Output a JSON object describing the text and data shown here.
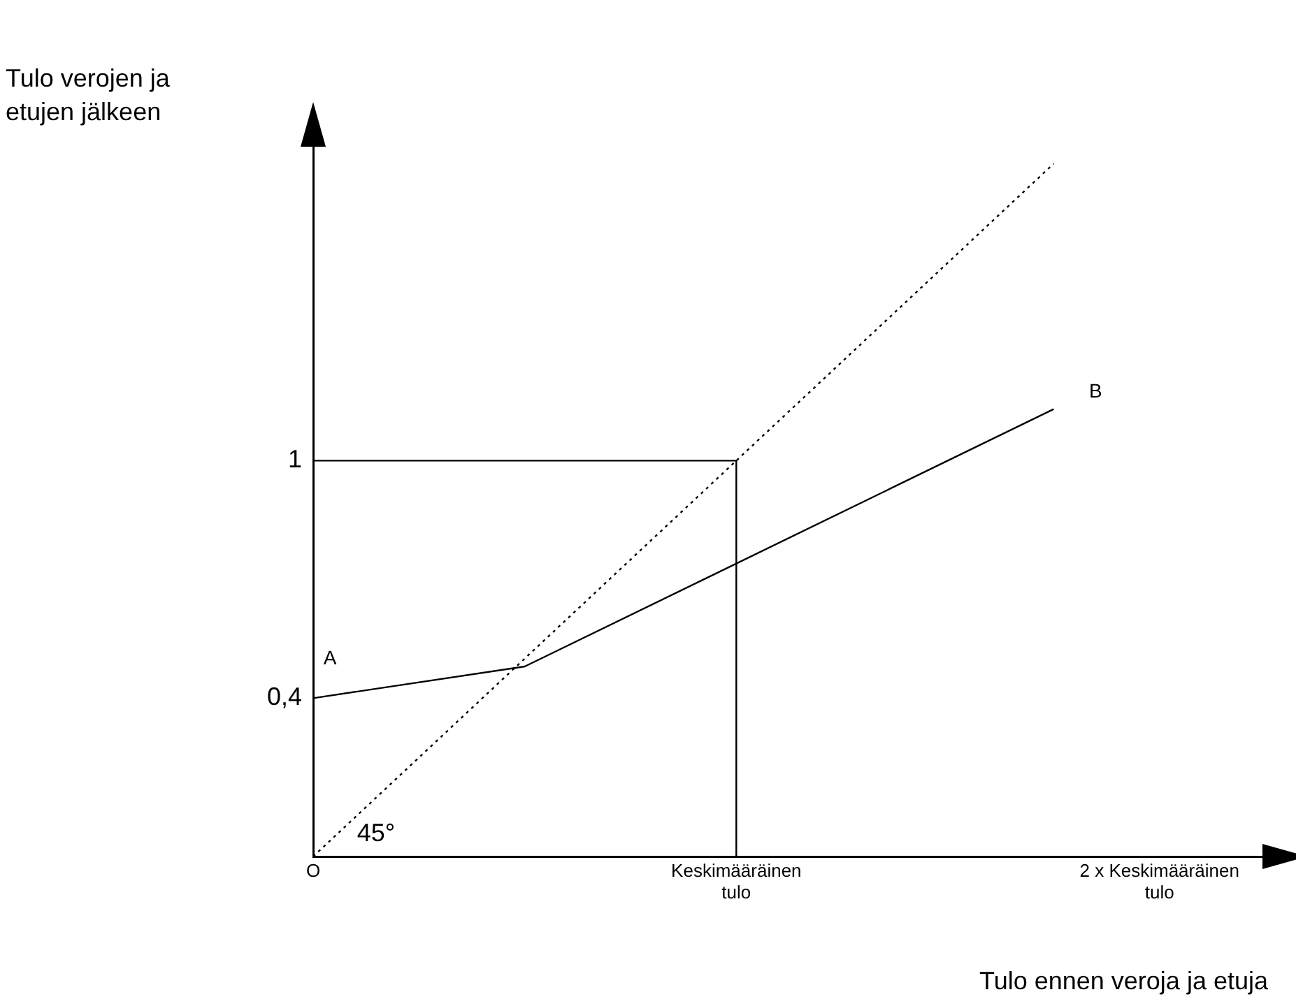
{
  "chart_data": {
    "type": "line",
    "xlabel": "Tulo ennen veroja ja etuja",
    "ylabel": "Tulo verojen ja etujen jälkeen",
    "categories": [
      "O",
      null,
      null,
      null,
      "Keskimääräinen tulo",
      null,
      null,
      null,
      "2 x Keskimääräinen tulo",
      null
    ],
    "ylim": [
      0,
      1.8
    ],
    "yticks": [
      {
        "value": 0.4,
        "label": "0,4"
      },
      1
    ],
    "grid": false,
    "legend": false,
    "marker": "none",
    "series": [
      {
        "type": "line",
        "color": "#000000",
        "values": [
          0.4,
          null,
          0.48,
          null,
          null,
          null,
          null,
          1.13,
          null,
          null
        ]
      },
      {
        "type": "line",
        "color": "#000000",
        "values": [
          0,
          null,
          null,
          null,
          null,
          null,
          null,
          1.75,
          null,
          null
        ],
        "line_style": "dotted"
      },
      {
        "type": "line",
        "color": "#000000",
        "x": [
          "O",
          "Keskimääräinen tulo",
          "Keskimääräinen tulo"
        ],
        "values": [
          1,
          1,
          0
        ]
      }
    ],
    "annotations": [
      "A",
      "B",
      "45°"
    ]
  }
}
